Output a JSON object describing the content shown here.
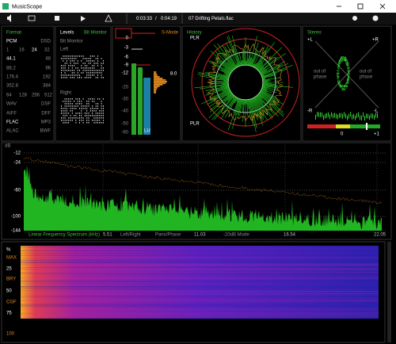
{
  "window": {
    "title": "MusicScope"
  },
  "toolbar": {
    "position": "0:03:33",
    "separator": "/",
    "duration": "0:04:19",
    "file": "07 Drifting Petals.flac"
  },
  "format": {
    "title": "Format",
    "rows": [
      [
        "PCM",
        "DSD"
      ],
      [
        "1",
        "16",
        "24",
        "32"
      ],
      [
        "44.1",
        "48"
      ],
      [
        "88.2",
        "96"
      ],
      [
        "176.4",
        "192"
      ],
      [
        "352.8",
        "384"
      ],
      [
        "64",
        "128",
        "256",
        "512"
      ],
      [
        "WAV",
        "DSF"
      ],
      [
        "AIFF",
        "DFF"
      ],
      [
        "FLAC",
        "MP3"
      ],
      [
        "ALAC",
        "BWF"
      ]
    ]
  },
  "levels": {
    "title": "Levels",
    "tab": "Bit Monitor",
    "subtitle": "Bit Monitor",
    "left": "Left",
    "right": "Right"
  },
  "meter": {
    "scale": [
      "0",
      "-3",
      "-6",
      "-9",
      "-12",
      "-20",
      "-30",
      "-40",
      "-50",
      "-60"
    ],
    "mode": "S-Mode",
    "readout": "8.0",
    "unit": "LU"
  },
  "history": {
    "title": "History",
    "top": "PLR",
    "bottom": "PLR"
  },
  "stereo": {
    "title": "Stereo",
    "plus_l": "+L",
    "plus_r": "+R",
    "minus_r": "-R",
    "minus_l": "-L",
    "phase_left": [
      "out of",
      "phase"
    ],
    "phase_right": [
      "out of",
      "phase"
    ],
    "zero": "0",
    "plus_one": "+1"
  },
  "spectrum": {
    "unit": "dB",
    "yticks": [
      "-12",
      "-24",
      "-60",
      "-100",
      "-144"
    ],
    "title": "Linear Frequency Spectrum (kHz)",
    "x1": "5.51",
    "mode1": "Left/Right",
    "mode2": "Pans/Phase",
    "x2": "11.03",
    "mode3": "-20dB Mode",
    "x3": "16.54",
    "x4": "22.05"
  },
  "spectrogram": {
    "labels": [
      "%",
      "MAX",
      "25",
      "BRY",
      "50",
      "CGF",
      "75",
      "100"
    ]
  }
}
